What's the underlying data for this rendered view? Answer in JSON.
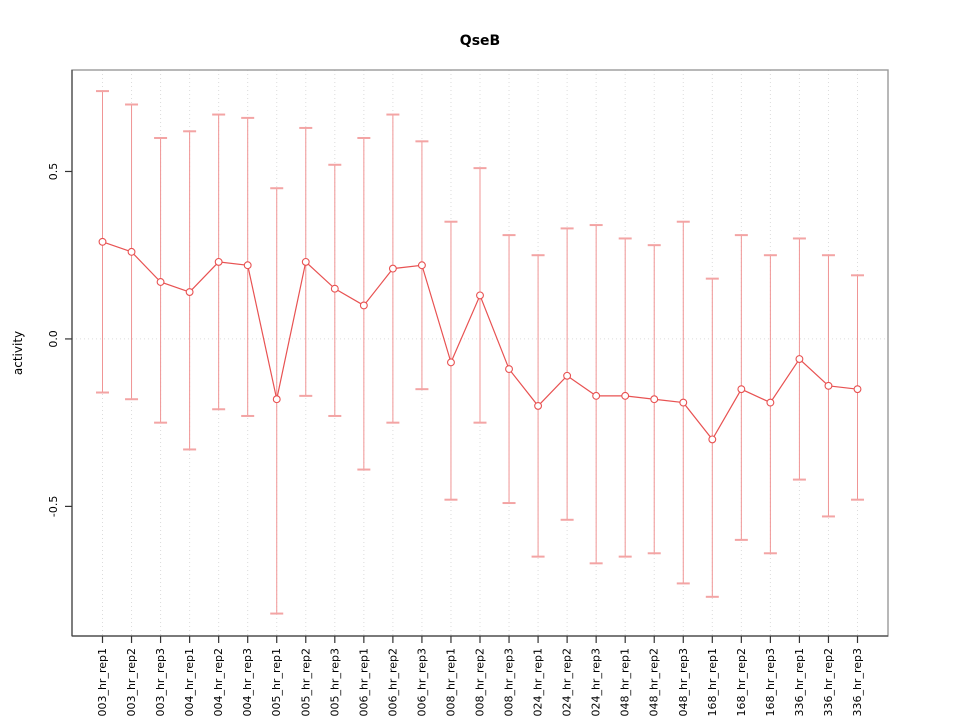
{
  "title": "QseB",
  "colors": {
    "series": "#e85252",
    "error_bar": "#f09595",
    "error_cap": "#f3a4a4",
    "grid": "#dcdcdc",
    "frame": "#9a9a9a",
    "axis": "#444444",
    "tick": "#333333",
    "text": "#000000",
    "background": "#ffffff"
  },
  "chart_data": {
    "type": "line",
    "subtype": "points-with-error-bars",
    "title": "QseB",
    "xlabel": "",
    "ylabel": "activity",
    "ylim": [
      -0.887,
      0.803
    ],
    "yticks": [
      -0.5,
      0,
      0.5
    ],
    "grid": "vertical dotted gridline at every category; dotted horizontal line at y=0",
    "legend_position": "none",
    "categories": [
      "003_hr_rep1",
      "003_hr_rep2",
      "003_hr_rep3",
      "004_hr_rep1",
      "004_hr_rep2",
      "004_hr_rep3",
      "005_hr_rep1",
      "005_hr_rep2",
      "005_hr_rep3",
      "006_hr_rep1",
      "006_hr_rep2",
      "006_hr_rep3",
      "008_hr_rep1",
      "008_hr_rep2",
      "008_hr_rep3",
      "024_hr_rep1",
      "024_hr_rep2",
      "024_hr_rep3",
      "048_hr_rep1",
      "048_hr_rep2",
      "048_hr_rep3",
      "168_hr_rep1",
      "168_hr_rep2",
      "168_hr_rep3",
      "336_hr_rep1",
      "336_hr_rep2",
      "336_hr_rep3"
    ],
    "series": [
      {
        "name": "activity",
        "marker": "open-circle",
        "values": [
          0.29,
          0.26,
          0.17,
          0.14,
          0.23,
          0.22,
          -0.18,
          0.23,
          0.15,
          0.1,
          0.21,
          0.22,
          -0.07,
          0.13,
          -0.09,
          -0.2,
          -0.11,
          -0.17,
          -0.17,
          -0.18,
          -0.19,
          -0.3,
          -0.15,
          -0.19,
          -0.06,
          -0.14,
          -0.15
        ],
        "error_high": [
          0.74,
          0.7,
          0.6,
          0.62,
          0.67,
          0.66,
          0.45,
          0.63,
          0.52,
          0.6,
          0.67,
          0.59,
          0.35,
          0.51,
          0.31,
          0.25,
          0.33,
          0.34,
          0.3,
          0.28,
          0.35,
          0.18,
          0.31,
          0.25,
          0.3,
          0.25,
          0.19
        ],
        "error_low": [
          -0.16,
          -0.18,
          -0.25,
          -0.33,
          -0.21,
          -0.23,
          -0.82,
          -0.17,
          -0.23,
          -0.39,
          -0.25,
          -0.15,
          -0.48,
          -0.25,
          -0.49,
          -0.65,
          -0.54,
          -0.67,
          -0.65,
          -0.64,
          -0.73,
          -0.77,
          -0.6,
          -0.64,
          -0.42,
          -0.53,
          -0.48
        ]
      }
    ]
  }
}
